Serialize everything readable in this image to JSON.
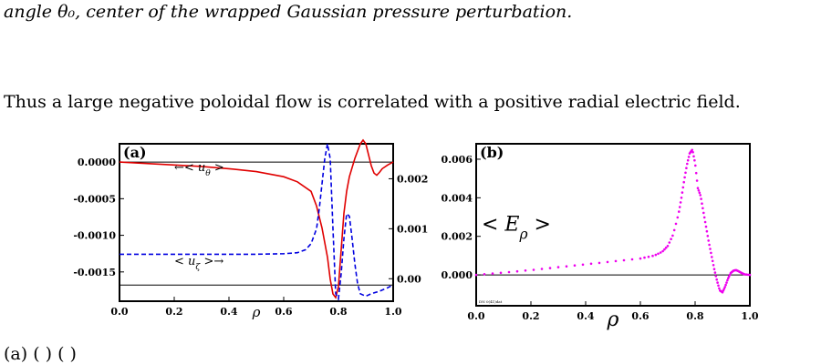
{
  "text": {
    "top_line": "angle θ₀, center of the wrapped Gaussian pressure perturbation.",
    "paragraph": "Thus a large negative poloidal flow is correlated with a positive radial electric field.",
    "bottom_line": "(a)                                                    (          )                        (          )"
  },
  "chart_data": [
    {
      "type": "line",
      "panel_label": "(a)",
      "xlabel": "ρ",
      "xlim": [
        0.0,
        1.0
      ],
      "x_ticks": [
        "0.0",
        "0.2",
        "0.4",
        "0.6",
        "0.8",
        "1.0"
      ],
      "y_left_lim": [
        -0.0019,
        0.00025
      ],
      "y_left_ticks": [
        "0.0000",
        "-0.0005",
        "-0.0010",
        "-0.0015"
      ],
      "y_right_lim": [
        -0.00045,
        0.0027
      ],
      "y_right_ticks": [
        "0.00",
        "0.001",
        "0.002"
      ],
      "hlines_left_axis": [
        0.0,
        -0.00168
      ],
      "annotations": [
        "←< u_θ >",
        "< u_ζ >→"
      ],
      "series": [
        {
          "name": "< u_θ >",
          "axis": "left",
          "color": "#e00000",
          "dash": "solid",
          "x": [
            0.0,
            0.1,
            0.2,
            0.3,
            0.4,
            0.5,
            0.6,
            0.65,
            0.7,
            0.72,
            0.74,
            0.76,
            0.77,
            0.78,
            0.79,
            0.8,
            0.81,
            0.82,
            0.83,
            0.84,
            0.86,
            0.88,
            0.89,
            0.9,
            0.91,
            0.92,
            0.93,
            0.94,
            0.95,
            0.96,
            0.98,
            1.0
          ],
          "y": [
            0.0,
            -2e-05,
            -4e-05,
            -6e-05,
            -9e-05,
            -0.00013,
            -0.0002,
            -0.00027,
            -0.0004,
            -0.0006,
            -0.0009,
            -0.0013,
            -0.0016,
            -0.0018,
            -0.00185,
            -0.0017,
            -0.0012,
            -0.0007,
            -0.0004,
            -0.0002,
            5e-05,
            0.00025,
            0.0003,
            0.00025,
            0.0001,
            -5e-05,
            -0.00015,
            -0.00018,
            -0.00014,
            -9e-05,
            -4e-05,
            0.0
          ]
        },
        {
          "name": "< u_ζ >",
          "axis": "right",
          "color": "#0000e0",
          "dash": "dashed",
          "x": [
            0.0,
            0.1,
            0.2,
            0.3,
            0.4,
            0.5,
            0.6,
            0.65,
            0.68,
            0.7,
            0.72,
            0.73,
            0.74,
            0.75,
            0.76,
            0.77,
            0.78,
            0.79,
            0.8,
            0.81,
            0.82,
            0.83,
            0.84,
            0.85,
            0.86,
            0.87,
            0.88,
            0.9,
            0.92,
            0.95,
            0.98,
            1.0
          ],
          "y": [
            0.00049,
            0.00049,
            0.00049,
            0.00049,
            0.00049,
            0.00049,
            0.0005,
            0.00052,
            0.00058,
            0.0007,
            0.001,
            0.0014,
            0.0019,
            0.0024,
            0.0027,
            0.0024,
            0.001,
            -0.0003,
            -0.0004,
            0.0001,
            0.0008,
            0.0013,
            0.00125,
            0.0008,
            0.0003,
            -0.0001,
            -0.0003,
            -0.00035,
            -0.0003,
            -0.00025,
            -0.00018,
            -0.00012
          ]
        }
      ]
    },
    {
      "type": "scatter",
      "panel_label": "(b)",
      "xlabel": "ρ",
      "xlim": [
        0.0,
        1.0
      ],
      "x_ticks": [
        "0.0",
        "0.2",
        "0.4",
        "0.6",
        "0.8",
        "1.0"
      ],
      "ylim": [
        -0.0016,
        0.0068
      ],
      "y_ticks": [
        "0.006",
        "0.004",
        "0.002",
        "0.000"
      ],
      "hlines": [
        0.0
      ],
      "annotation": "< E_ρ >",
      "footnote": "DN 0(41)dat",
      "series": [
        {
          "name": "< E_ρ >",
          "color": "#ee00ee",
          "x": [
            0.0,
            0.1,
            0.2,
            0.3,
            0.4,
            0.5,
            0.6,
            0.65,
            0.68,
            0.7,
            0.72,
            0.74,
            0.75,
            0.76,
            0.77,
            0.78,
            0.79,
            0.8,
            0.81,
            0.82,
            0.83,
            0.84,
            0.85,
            0.86,
            0.87,
            0.88,
            0.89,
            0.9,
            0.91,
            0.92,
            0.93,
            0.94,
            0.95,
            0.96,
            0.97,
            0.98,
            1.0
          ],
          "y": [
            0.0,
            0.00012,
            0.00025,
            0.0004,
            0.00055,
            0.0007,
            0.00085,
            0.001,
            0.0012,
            0.0015,
            0.0021,
            0.0032,
            0.004,
            0.0049,
            0.0057,
            0.0063,
            0.0065,
            0.0058,
            0.0045,
            0.0041,
            0.0033,
            0.0025,
            0.0017,
            0.001,
            0.0003,
            -0.0003,
            -0.0008,
            -0.0009,
            -0.0006,
            -0.0002,
            0.0001,
            0.00022,
            0.00025,
            0.00018,
            0.0001,
            3e-05,
            0.0
          ]
        }
      ]
    }
  ]
}
